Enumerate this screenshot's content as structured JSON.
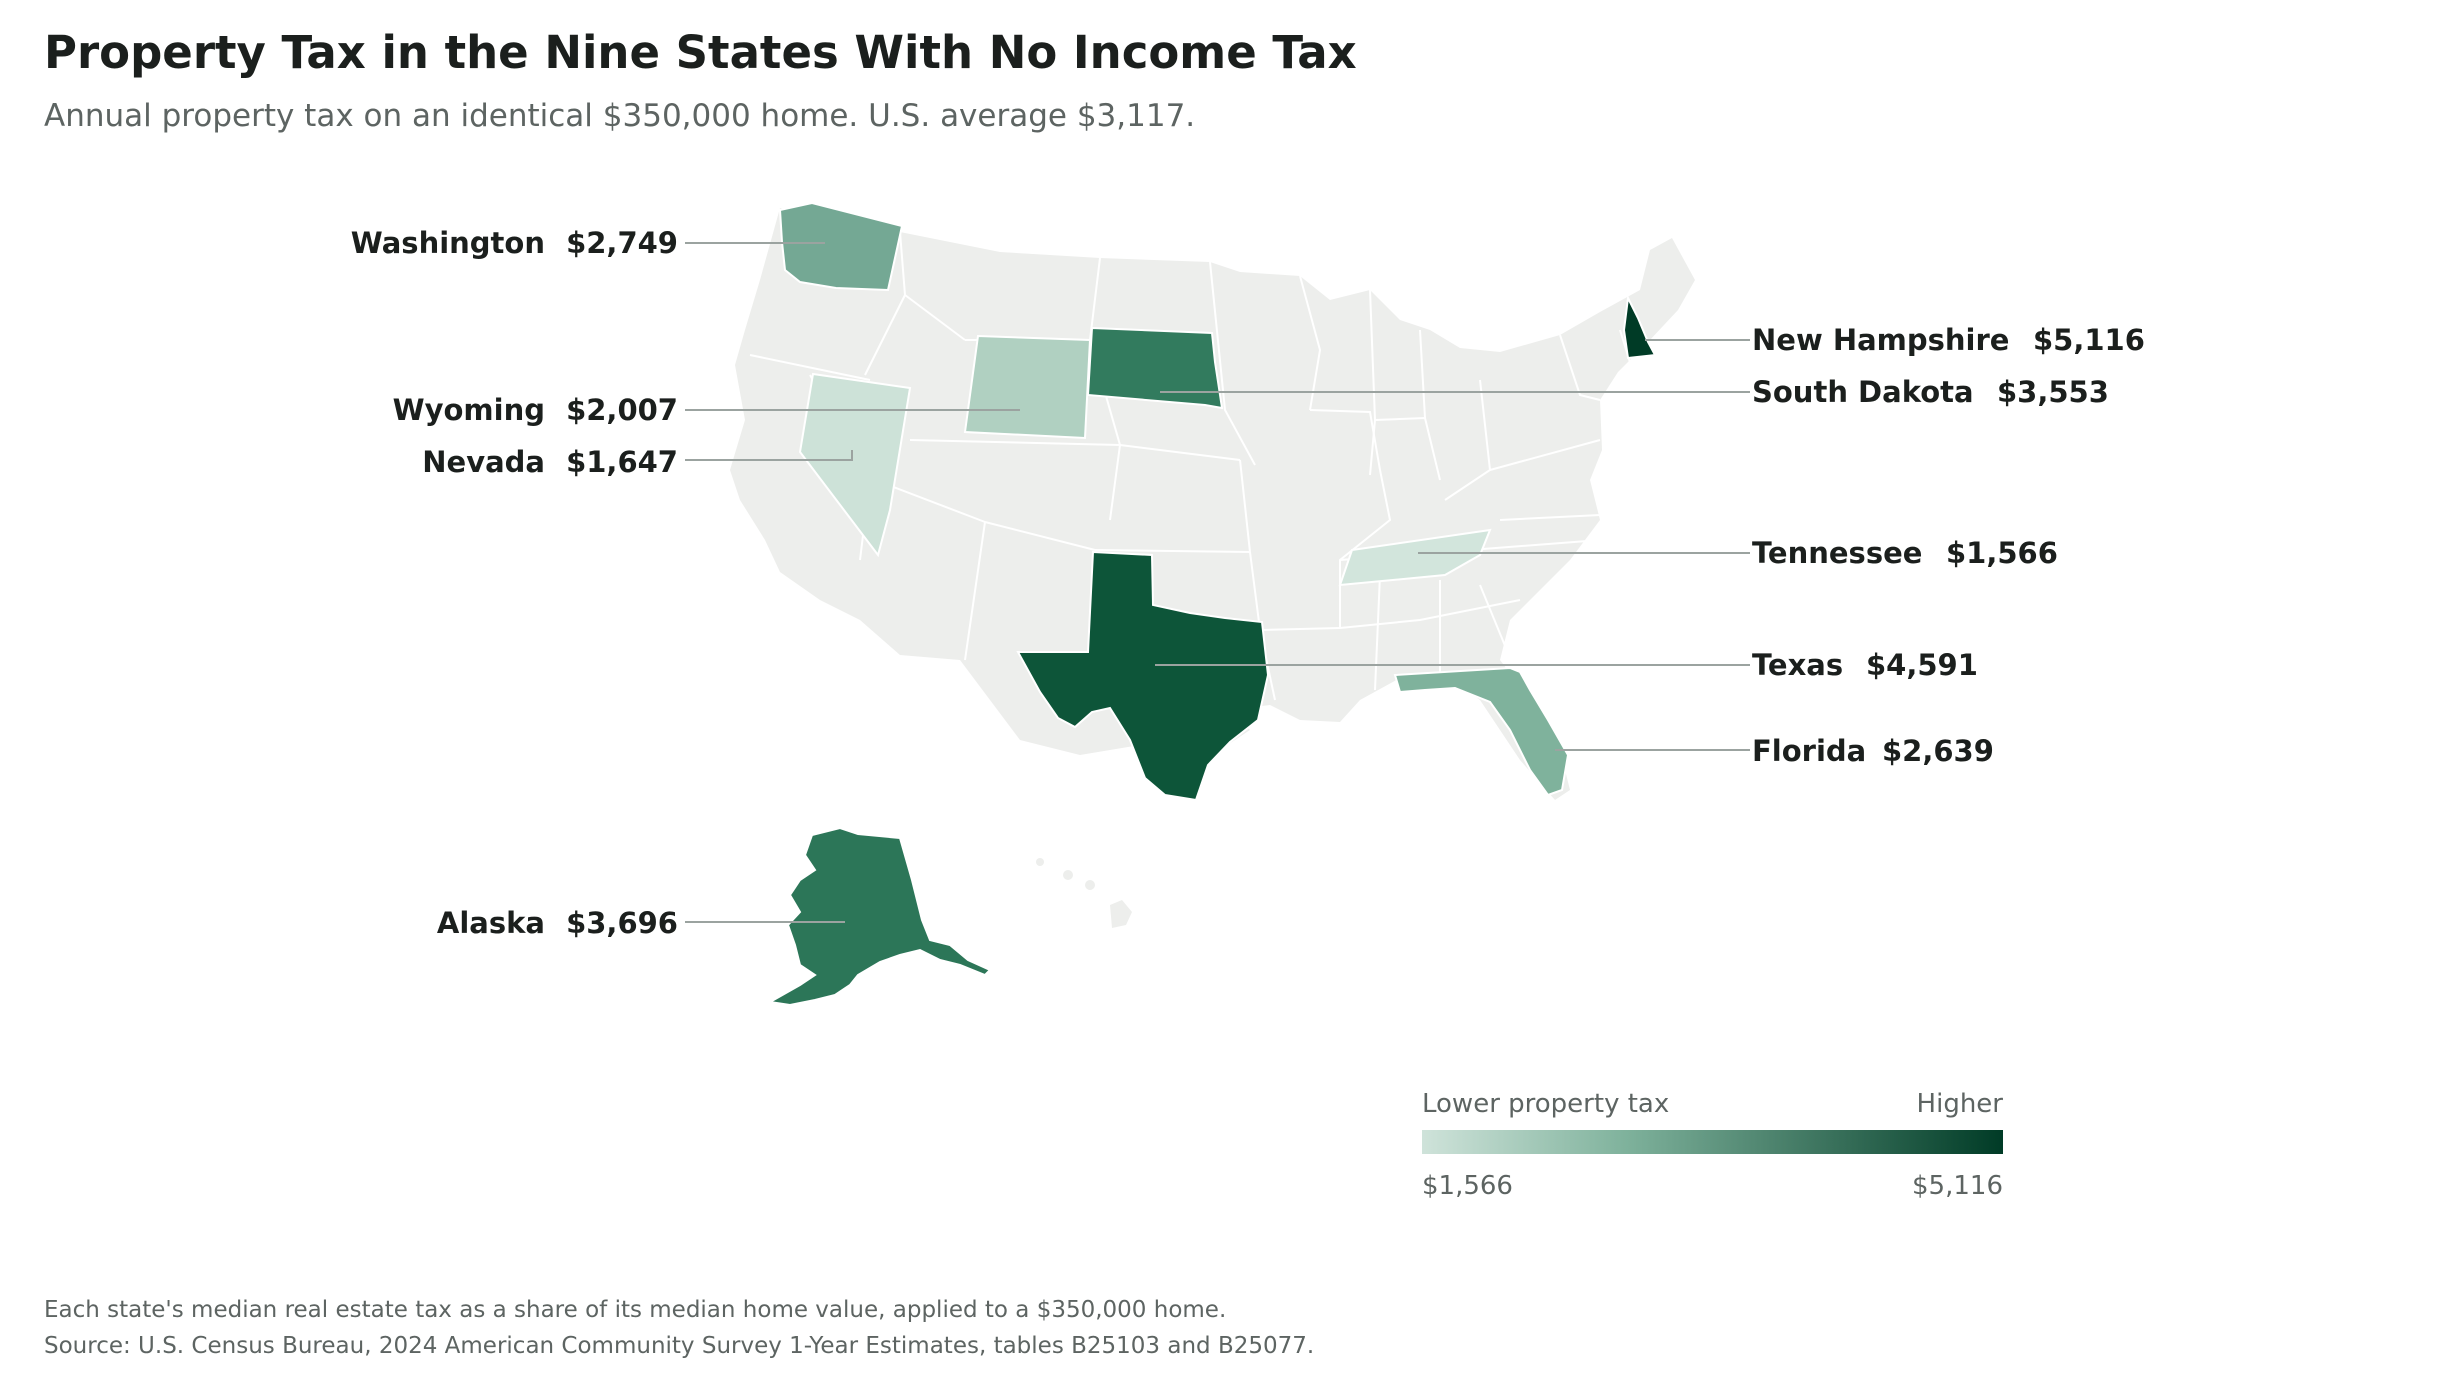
{
  "title": "Property Tax in the Nine States With No Income Tax",
  "subtitle": "Annual property tax on an identical $350,000 home. U.S. average $3,117.",
  "colors": {
    "base_state": "#edeeec",
    "state_border": "#ffffff",
    "leader_line": "#9ba3a0",
    "scale_low": "#cfe3da",
    "scale_mid": "#7fb29c",
    "scale_high": "#003b26"
  },
  "states": [
    {
      "name": "Washington",
      "value": "$2,749",
      "amount": 2749,
      "color": "#74a894"
    },
    {
      "name": "Wyoming",
      "value": "$2,007",
      "amount": 2007,
      "color": "#b0d0c1"
    },
    {
      "name": "Nevada",
      "value": "$1,647",
      "amount": 1647,
      "color": "#cde2d8"
    },
    {
      "name": "Alaska",
      "value": "$3,696",
      "amount": 3696,
      "color": "#2c7658"
    },
    {
      "name": "New Hampshire",
      "value": "$5,116",
      "amount": 5116,
      "color": "#003b26"
    },
    {
      "name": "South Dakota",
      "value": "$3,553",
      "amount": 3553,
      "color": "#327b5e"
    },
    {
      "name": "Tennessee",
      "value": "$1,566",
      "amount": 1566,
      "color": "#d2e5dc"
    },
    {
      "name": "Texas",
      "value": "$4,591",
      "amount": 4591,
      "color": "#0d5539"
    },
    {
      "name": "Florida",
      "value": "$2,639",
      "amount": 2639,
      "color": "#7fb29c"
    }
  ],
  "legend": {
    "low_label": "Lower property tax",
    "high_label": "Higher",
    "min_value": "$1,566",
    "max_value": "$5,116"
  },
  "footnotes": {
    "note": "Each state's median real estate tax as a share of its median home value, applied to a $350,000 home.",
    "source": "Source: U.S. Census Bureau, 2024 American Community Survey 1-Year Estimates, tables B25103 and B25077."
  }
}
